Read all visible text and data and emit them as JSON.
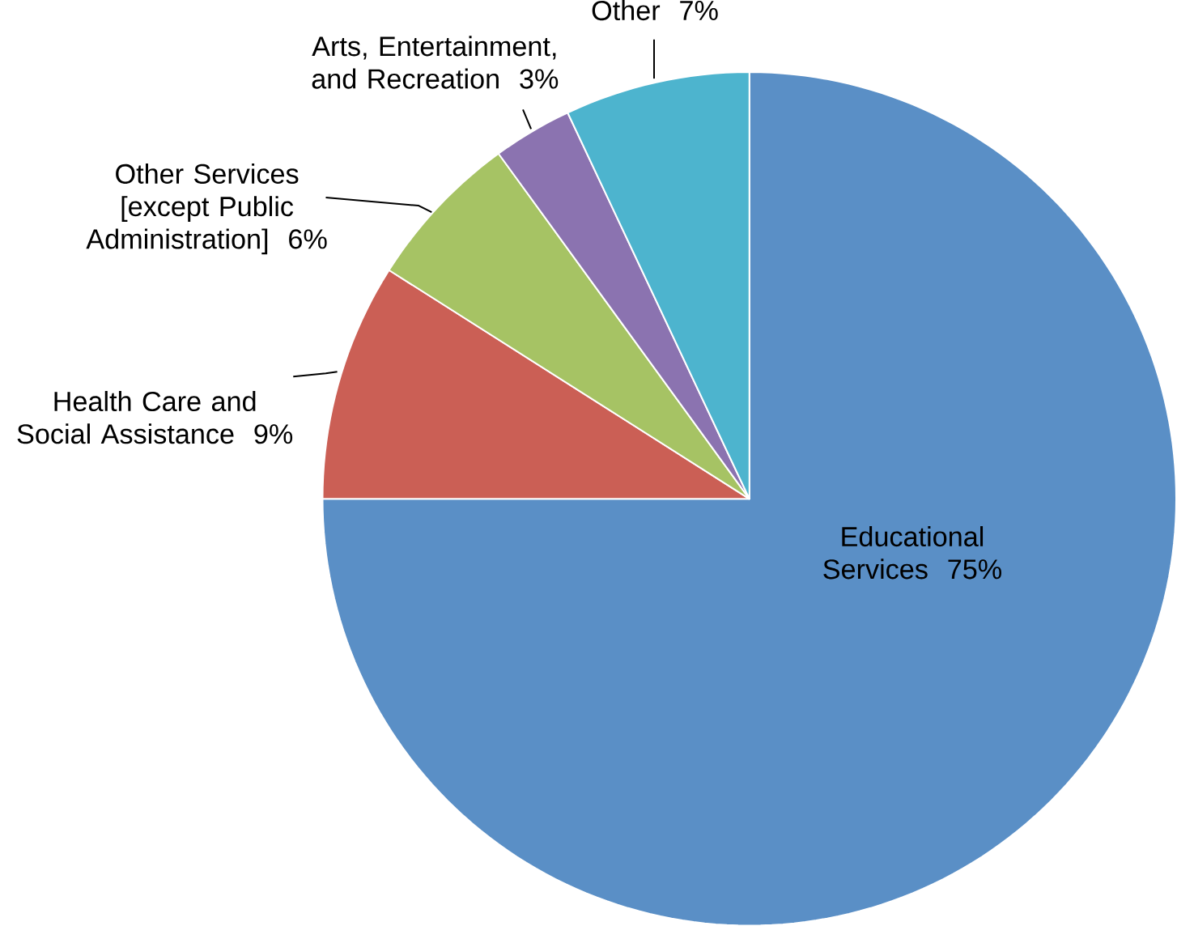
{
  "chart_data": {
    "type": "pie",
    "categories": [
      "Educational Services",
      "Health Care and Social Assistance",
      "Other Services [except Public Administration]",
      "Arts, Entertainment, and Recreation",
      "Other"
    ],
    "values": [
      75,
      9,
      6,
      3,
      7
    ],
    "value_labels": [
      "75%",
      "9%",
      "6%",
      "3%",
      "7%"
    ],
    "colors": [
      "#5a8fc6",
      "#cb5f55",
      "#a6c364",
      "#8b73b0",
      "#4db4ce"
    ]
  }
}
